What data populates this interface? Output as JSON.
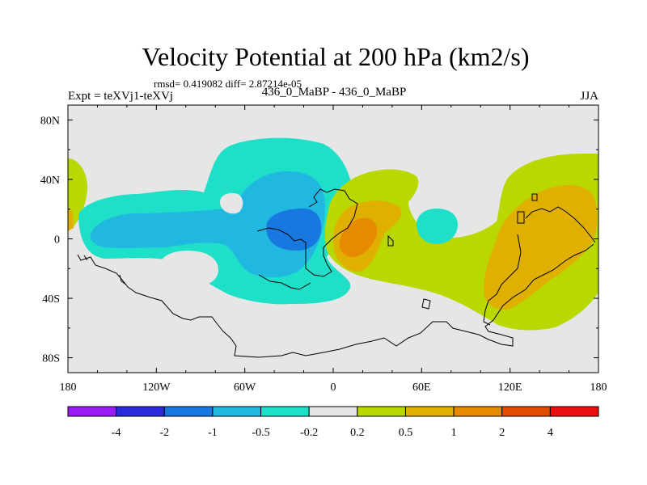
{
  "title": "Velocity Potential at 200 hPa (km2/s)",
  "stats": "rmsd= 0.419082 diff= 2.87214e-05",
  "expt": "Expt = teXVj1-teXVj",
  "case": "436_0_MaBP - 436_0_MaBP",
  "season": "JJA",
  "chart_data": {
    "type": "contour-filled map",
    "variable": "Velocity Potential at 200 hPa",
    "units": "km2/s",
    "xlim": [
      -180,
      180
    ],
    "ylim": [
      -90,
      90
    ],
    "x_ticks": [
      -180,
      -120,
      -60,
      0,
      60,
      120,
      180
    ],
    "x_tick_labels": [
      "180",
      "120W",
      "60W",
      "0",
      "60E",
      "120E",
      "180"
    ],
    "y_ticks": [
      80,
      40,
      0,
      -40,
      -80
    ],
    "y_tick_labels": [
      "80N",
      "40N",
      "0",
      "40S",
      "80S"
    ],
    "levels": [
      "-4",
      "-2",
      "-1",
      "-0.5",
      "-0.2",
      "0.2",
      "0.5",
      "1",
      "2",
      "4"
    ],
    "colors": [
      "#9a1cf0",
      "#2a2ad8",
      "#1878e0",
      "#20b8e0",
      "#1ee0c8",
      "#e6e6e6",
      "#b8d800",
      "#e0b000",
      "#e88a00",
      "#e04c00",
      "#e81010"
    ],
    "background_color": "#e6e6e6",
    "regions": [
      {
        "value_range": "-0.5 to -0.2",
        "lon": [
          -165,
          -10
        ],
        "lat": [
          -45,
          65
        ]
      },
      {
        "value_range": "-1 to -0.5",
        "lon": [
          -150,
          -15
        ],
        "lat": [
          -35,
          50
        ]
      },
      {
        "value_range": "-2 to -1",
        "lon": [
          -45,
          -10
        ],
        "lat": [
          -5,
          20
        ]
      },
      {
        "value_range": "-0.5 to -0.2",
        "lon": [
          60,
          95
        ],
        "lat": [
          -5,
          20
        ]
      },
      {
        "value_range": "0.2 to 0.5",
        "lon": [
          5,
          130
        ],
        "lat": [
          -60,
          50
        ]
      },
      {
        "value_range": "0.2 to 0.5",
        "lon": [
          110,
          180
        ],
        "lat": [
          -60,
          50
        ]
      },
      {
        "value_range": "0.5 to 1",
        "lon": [
          5,
          50
        ],
        "lat": [
          -30,
          25
        ]
      },
      {
        "value_range": "0.5 to 1",
        "lon": [
          115,
          170
        ],
        "lat": [
          -50,
          35
        ]
      },
      {
        "value_range": "1 to 2",
        "lon": [
          5,
          35
        ],
        "lat": [
          -15,
          15
        ]
      },
      {
        "value_range": "0.2 to 0.5",
        "lon": [
          -180,
          -170
        ],
        "lat": [
          -10,
          55
        ]
      }
    ]
  }
}
